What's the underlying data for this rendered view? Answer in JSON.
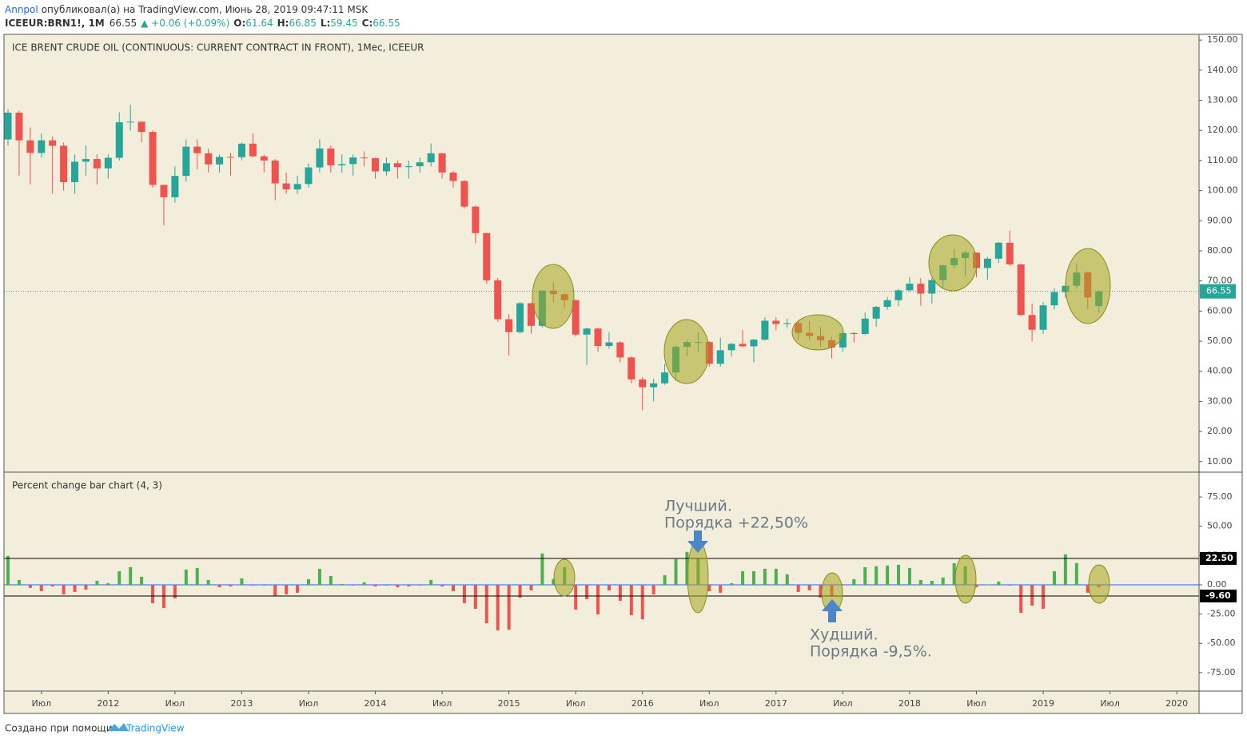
{
  "header": {
    "author": "Annpol",
    "published": "опубликовал(а) на TradingView.com, Июнь 28, 2019 09:47:11 MSK",
    "symbol": "ICEEUR:BRN1!, 1M",
    "last": "66.55",
    "change": "▲ +0.06 (+0.09%)",
    "ohlc": [
      {
        "label": "O:",
        "value": "61.64"
      },
      {
        "label": "H:",
        "value": "66.85"
      },
      {
        "label": "L:",
        "value": "59.45"
      },
      {
        "label": "C:",
        "value": "66.55"
      }
    ]
  },
  "footer": {
    "text": "Создано при помощи",
    "brand": "TradingView"
  },
  "chart_data": [
    {
      "type": "candlestick",
      "title": "ICE BRENT CRUDE OIL (CONTINUOUS: CURRENT CONTRACT IN FRONT), 1Мес, ICEEUR",
      "up_color": "#26a69a",
      "down_color": "#ef5350",
      "x": [
        "2011-04",
        "2011-05",
        "2011-06",
        "2011-07",
        "2011-08",
        "2011-09",
        "2011-10",
        "2011-11",
        "2011-12",
        "2012-01",
        "2012-02",
        "2012-03",
        "2012-04",
        "2012-05",
        "2012-06",
        "2012-07",
        "2012-08",
        "2012-09",
        "2012-10",
        "2012-11",
        "2012-12",
        "2013-01",
        "2013-02",
        "2013-03",
        "2013-04",
        "2013-05",
        "2013-06",
        "2013-07",
        "2013-08",
        "2013-09",
        "2013-10",
        "2013-11",
        "2013-12",
        "2014-01",
        "2014-02",
        "2014-03",
        "2014-04",
        "2014-05",
        "2014-06",
        "2014-07",
        "2014-08",
        "2014-09",
        "2014-10",
        "2014-11",
        "2014-12",
        "2015-01",
        "2015-02",
        "2015-03",
        "2015-04",
        "2015-05",
        "2015-06",
        "2015-07",
        "2015-08",
        "2015-09",
        "2015-10",
        "2015-11",
        "2015-12",
        "2016-01",
        "2016-02",
        "2016-03",
        "2016-04",
        "2016-05",
        "2016-06",
        "2016-07",
        "2016-08",
        "2016-09",
        "2016-10",
        "2016-11",
        "2016-12",
        "2017-01",
        "2017-02",
        "2017-03",
        "2017-04",
        "2017-05",
        "2017-06",
        "2017-07",
        "2017-08",
        "2017-09",
        "2017-10",
        "2017-11",
        "2017-12",
        "2018-01",
        "2018-02",
        "2018-03",
        "2018-04",
        "2018-05",
        "2018-06",
        "2018-07",
        "2018-08",
        "2018-09",
        "2018-10",
        "2018-11",
        "2018-12",
        "2019-01",
        "2019-02",
        "2019-03",
        "2019-04",
        "2019-05",
        "2019-06"
      ],
      "open": [
        117.0,
        125.9,
        116.7,
        112.5,
        116.7,
        114.9,
        102.8,
        109.6,
        110.5,
        107.4,
        110.9,
        122.7,
        122.9,
        119.5,
        101.9,
        97.8,
        104.9,
        114.6,
        112.4,
        108.7,
        111.2,
        111.1,
        115.6,
        111.4,
        110.0,
        102.4,
        100.4,
        102.2,
        107.7,
        114.0,
        108.4,
        108.8,
        111.0,
        110.8,
        106.4,
        109.1,
        107.8,
        108.1,
        109.4,
        112.4,
        106.0,
        103.2,
        94.7,
        85.9,
        70.2,
        57.3,
        53.0,
        62.6,
        55.1,
        66.8,
        65.6,
        63.6,
        52.2,
        54.2,
        48.4,
        49.6,
        44.6,
        37.3,
        34.7,
        36.0,
        39.6,
        48.1,
        49.7,
        49.7,
        42.5,
        47.0,
        49.1,
        48.3,
        50.5,
        56.8,
        55.7,
        56.0,
        52.8,
        51.7,
        50.3,
        47.9,
        52.7,
        52.4,
        57.5,
        61.4,
        63.6,
        66.9,
        69.1,
        65.8,
        70.3,
        75.2,
        77.6,
        79.4,
        74.3,
        77.4,
        82.7,
        75.5,
        58.7,
        53.8,
        61.9,
        66.3,
        68.4,
        72.8,
        61.64
      ],
      "high": [
        127.0,
        126.5,
        121,
        119,
        118,
        116,
        112,
        115,
        112,
        112,
        126,
        128.4,
        122,
        120,
        102,
        108,
        117,
        117,
        114,
        112,
        112.5,
        116,
        119,
        112,
        110.5,
        106,
        105,
        109,
        117,
        115,
        112,
        112,
        113,
        110.9,
        111,
        110,
        110,
        111,
        115.7,
        112.5,
        106.5,
        103.5,
        95,
        86,
        71,
        59,
        63,
        62.9,
        67,
        69.6,
        66,
        64,
        54.5,
        54.5,
        53,
        50,
        45,
        38,
        37.5,
        42.5,
        48.5,
        50.5,
        52.9,
        50,
        51.2,
        49.5,
        53.7,
        50.8,
        57.9,
        58,
        57.5,
        57,
        56.7,
        54.7,
        51.5,
        53,
        53,
        59.5,
        61.7,
        64.7,
        67.3,
        71.3,
        71,
        71,
        75.5,
        80.5,
        80,
        79.5,
        78,
        83,
        86.7,
        75.8,
        62.5,
        63,
        67.5,
        69.5,
        75.6,
        73.2,
        66.85
      ],
      "low": [
        115,
        105,
        102,
        111,
        99,
        100,
        99,
        105,
        102,
        104,
        110,
        120,
        116,
        101,
        88.5,
        96,
        103,
        107,
        106,
        106,
        105,
        110,
        111,
        106,
        96.8,
        99,
        99,
        101,
        106,
        106,
        106,
        105,
        108,
        104,
        105,
        104,
        104,
        106,
        108,
        104,
        101,
        94,
        82.6,
        69,
        56.5,
        45.2,
        52.5,
        52.5,
        54.5,
        63,
        61,
        51.5,
        42.2,
        46.5,
        47.5,
        43,
        36,
        27.1,
        30,
        35.5,
        36.8,
        45,
        46.6,
        41.5,
        41.5,
        45,
        48,
        43,
        50.2,
        53.6,
        54.5,
        50.3,
        50.3,
        48,
        44.3,
        46.5,
        49.5,
        52,
        54.8,
        60.5,
        61.6,
        66.5,
        61.8,
        62.5,
        67.5,
        74,
        71.8,
        71.2,
        70.4,
        76,
        75,
        58.4,
        50,
        52.5,
        60.5,
        64.5,
        67.5,
        60.6,
        59.45
      ],
      "close": [
        125.9,
        116.7,
        112.5,
        116.7,
        114.9,
        102.8,
        109.6,
        110.5,
        107.4,
        110.9,
        122.7,
        122.9,
        119.5,
        101.9,
        97.8,
        104.9,
        114.6,
        112.4,
        108.7,
        111.2,
        111.1,
        115.6,
        111.4,
        110.0,
        102.4,
        100.4,
        102.2,
        107.7,
        114.0,
        108.4,
        108.8,
        111.0,
        110.8,
        106.4,
        109.1,
        107.8,
        108.1,
        109.4,
        112.4,
        106.0,
        103.2,
        94.7,
        85.9,
        70.2,
        57.3,
        53.0,
        62.6,
        55.1,
        66.8,
        65.6,
        63.6,
        52.2,
        54.2,
        48.4,
        49.6,
        44.6,
        37.3,
        34.7,
        36.0,
        39.6,
        48.1,
        49.7,
        49.7,
        42.5,
        47.0,
        49.1,
        48.3,
        50.5,
        56.8,
        55.7,
        56.0,
        52.8,
        51.7,
        50.3,
        47.9,
        52.7,
        52.4,
        57.5,
        61.4,
        63.6,
        66.9,
        69.1,
        65.8,
        70.3,
        75.2,
        77.6,
        79.4,
        74.3,
        77.4,
        82.7,
        75.5,
        58.7,
        53.8,
        61.9,
        66.3,
        68.4,
        72.8,
        64.5,
        66.55
      ],
      "xlim": [
        "2011-04",
        "2020-03"
      ],
      "ylim": [
        6.5,
        151.9
      ],
      "yticks": [
        {
          "value": 10,
          "label": "10.00"
        },
        {
          "value": 20,
          "label": "20.00"
        },
        {
          "value": 30,
          "label": "30.00"
        },
        {
          "value": 40,
          "label": "40.00"
        },
        {
          "value": 50,
          "label": "50.00"
        },
        {
          "value": 60,
          "label": "60.00"
        },
        {
          "value": 70,
          "label": "70.00"
        },
        {
          "value": 80,
          "label": "80.00"
        },
        {
          "value": 90,
          "label": "90.00"
        },
        {
          "value": 100,
          "label": "100.00"
        },
        {
          "value": 110,
          "label": "110.00"
        },
        {
          "value": 120,
          "label": "120.00"
        },
        {
          "value": 130,
          "label": "130.00"
        },
        {
          "value": 140,
          "label": "140.00"
        },
        {
          "value": 150,
          "label": "150.00"
        }
      ],
      "price_line": {
        "value": 66.55,
        "label": "66.55",
        "color": "#26a69a"
      }
    },
    {
      "type": "bar",
      "title": "Percent change bar chart (4, 3)",
      "up_color": "#4caf50",
      "down_color": "#ef5350",
      "baseline_color": "#2962ff",
      "x": [
        "2011-04",
        "2011-05",
        "2011-06",
        "2011-07",
        "2011-08",
        "2011-09",
        "2011-10",
        "2011-11",
        "2011-12",
        "2012-01",
        "2012-02",
        "2012-03",
        "2012-04",
        "2012-05",
        "2012-06",
        "2012-07",
        "2012-08",
        "2012-09",
        "2012-10",
        "2012-11",
        "2012-12",
        "2013-01",
        "2013-02",
        "2013-03",
        "2013-04",
        "2013-05",
        "2013-06",
        "2013-07",
        "2013-08",
        "2013-09",
        "2013-10",
        "2013-11",
        "2013-12",
        "2014-01",
        "2014-02",
        "2014-03",
        "2014-04",
        "2014-05",
        "2014-06",
        "2014-07",
        "2014-08",
        "2014-09",
        "2014-10",
        "2014-11",
        "2014-12",
        "2015-01",
        "2015-02",
        "2015-03",
        "2015-04",
        "2015-05",
        "2015-06",
        "2015-07",
        "2015-08",
        "2015-09",
        "2015-10",
        "2015-11",
        "2015-12",
        "2016-01",
        "2016-02",
        "2016-03",
        "2016-04",
        "2016-05",
        "2016-06",
        "2016-07",
        "2016-08",
        "2016-09",
        "2016-10",
        "2016-11",
        "2016-12",
        "2017-01",
        "2017-02",
        "2017-03",
        "2017-04",
        "2017-05",
        "2017-06",
        "2017-07",
        "2017-08",
        "2017-09",
        "2017-10",
        "2017-11",
        "2017-12",
        "2018-01",
        "2018-02",
        "2018-03",
        "2018-04",
        "2018-05",
        "2018-06",
        "2018-07",
        "2018-08",
        "2018-09",
        "2018-10",
        "2018-11",
        "2018-12",
        "2019-01",
        "2019-02",
        "2019-03",
        "2019-04",
        "2019-05",
        "2019-06"
      ],
      "values": [
        24.7,
        4.1,
        -2.7,
        -5.5,
        -1.4,
        -8.2,
        -6.2,
        -4.1,
        3.4,
        1.4,
        11.6,
        15.1,
        6.8,
        -15.8,
        -19.9,
        -11.6,
        13,
        14.4,
        4.1,
        -2.1,
        -1.4,
        5.5,
        -0.7,
        -0.7,
        -9.6,
        -8.2,
        -6.8,
        4.8,
        13.7,
        7.5,
        0.7,
        -0.7,
        2.1,
        -1.4,
        -0.7,
        -2.1,
        -1.4,
        -0.7,
        4.1,
        -1.4,
        -5.5,
        -15.8,
        -20.5,
        -32.9,
        -39,
        -38.4,
        -11,
        -4.8,
        26.7,
        4.8,
        15.1,
        -21.2,
        -12.3,
        -25.3,
        -4.8,
        -13.7,
        -26,
        -29.5,
        -8.2,
        8.2,
        21.9,
        28.1,
        22.5,
        -5.5,
        -6.8,
        1.4,
        11.6,
        11.6,
        13.7,
        13.7,
        8.9,
        -6.2,
        -4.8,
        -11,
        -9.5,
        0.5,
        4.8,
        15.1,
        15.8,
        16.4,
        17.1,
        14.4,
        4.1,
        3.4,
        6.2,
        18.5,
        15.8,
        -2.1,
        0.3,
        2.7,
        -0.7,
        -24,
        -17.8,
        -20.5,
        11.6,
        26,
        18.5,
        -6.8,
        -2.1
      ],
      "xlim": [
        "2011-04",
        "2020-03"
      ],
      "ylim": [
        -90.8,
        96.2
      ],
      "yticks": [
        {
          "value": 75,
          "label": "75.00"
        },
        {
          "value": 50,
          "label": "50.00"
        },
        {
          "value": 25,
          "label": "25.00"
        },
        {
          "value": 0,
          "label": "0.00"
        },
        {
          "value": -25,
          "label": "-25.00"
        },
        {
          "value": -50,
          "label": "-50.00"
        },
        {
          "value": -75,
          "label": "-75.00"
        }
      ],
      "levels": [
        {
          "value": 22.5,
          "label": "22.50"
        },
        {
          "value": -9.6,
          "label": "-9.60"
        }
      ],
      "xticks": [
        {
          "value": "2011-07",
          "label": "Июл"
        },
        {
          "value": "2012-01",
          "label": "2012"
        },
        {
          "value": "2012-07",
          "label": "Июл"
        },
        {
          "value": "2013-01",
          "label": "2013"
        },
        {
          "value": "2013-07",
          "label": "Июл"
        },
        {
          "value": "2014-01",
          "label": "2014"
        },
        {
          "value": "2014-07",
          "label": "Июл"
        },
        {
          "value": "2015-01",
          "label": "2015"
        },
        {
          "value": "2015-07",
          "label": "Июл"
        },
        {
          "value": "2016-01",
          "label": "2016"
        },
        {
          "value": "2016-07",
          "label": "Июл"
        },
        {
          "value": "2017-01",
          "label": "2017"
        },
        {
          "value": "2017-07",
          "label": "Июл"
        },
        {
          "value": "2018-01",
          "label": "2018"
        },
        {
          "value": "2018-07",
          "label": "Июл"
        },
        {
          "value": "2019-01",
          "label": "2019"
        },
        {
          "value": "2019-07",
          "label": "Июл"
        },
        {
          "value": "2020-01",
          "label": "2020"
        }
      ],
      "annotations": [
        [
          "Лучший.",
          "Порядка +22,50%"
        ],
        [
          "Худший.",
          "Порядка -9,5%."
        ]
      ]
    }
  ]
}
